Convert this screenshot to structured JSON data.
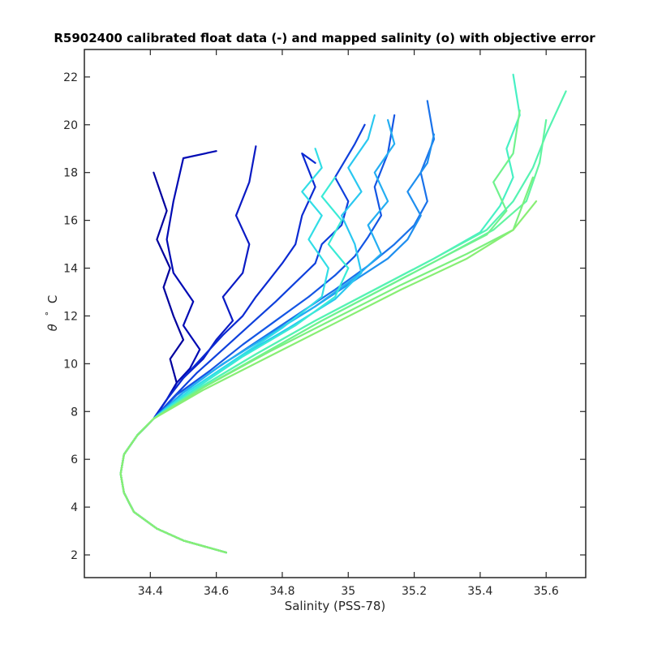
{
  "chart_data": {
    "type": "line",
    "title": "R5902400 calibrated float data (-) and mapped salinity (o) with objective error",
    "xlabel": "Salinity (PSS-78)",
    "ylabel_symbol": "θ",
    "ylabel_degree": "°",
    "ylabel_unit": "C",
    "xlim": [
      34.2,
      35.72
    ],
    "ylim": [
      1.05,
      23.15
    ],
    "xticks": [
      34.4,
      34.6,
      34.8,
      35,
      35.2,
      35.4,
      35.6
    ],
    "xtick_labels": [
      "34.4",
      "34.6",
      "34.8",
      "35",
      "35.2",
      "35.4",
      "35.6"
    ],
    "yticks": [
      2,
      4,
      6,
      8,
      10,
      12,
      14,
      16,
      18,
      20,
      22
    ],
    "ytick_labels": [
      "2",
      "4",
      "6",
      "8",
      "10",
      "12",
      "14",
      "16",
      "18",
      "20",
      "22"
    ],
    "grid": false,
    "colormap": [
      "#0000aa",
      "#0a2bd6",
      "#1a6ae8",
      "#21b8f0",
      "#33e8e0",
      "#5cf5b2",
      "#80f07c"
    ],
    "series": [
      {
        "color": "#00009e",
        "x": [
          34.63,
          34.5,
          34.42,
          34.35,
          34.32,
          34.31,
          34.32,
          34.36,
          34.41,
          34.45,
          34.48,
          34.46,
          34.5,
          34.47,
          34.44,
          34.46,
          34.42,
          34.45,
          34.41
        ],
        "y": [
          2.1,
          2.6,
          3.1,
          3.8,
          4.6,
          5.4,
          6.2,
          7.0,
          7.7,
          8.5,
          9.2,
          10.2,
          11.0,
          12.0,
          13.2,
          14.0,
          15.2,
          16.4,
          18.0
        ]
      },
      {
        "color": "#000ab4",
        "x": [
          34.63,
          34.5,
          34.42,
          34.35,
          34.32,
          34.31,
          34.32,
          34.36,
          34.41,
          34.45,
          34.48,
          34.52,
          34.55,
          34.5,
          34.53,
          34.47,
          34.45,
          34.47,
          34.5,
          34.6
        ],
        "y": [
          2.1,
          2.6,
          3.1,
          3.8,
          4.6,
          5.4,
          6.2,
          7.0,
          7.7,
          8.5,
          9.2,
          9.8,
          10.6,
          11.6,
          12.6,
          13.8,
          15.2,
          16.8,
          18.6,
          18.9
        ]
      },
      {
        "color": "#0a1ac4",
        "x": [
          34.63,
          34.5,
          34.42,
          34.35,
          34.32,
          34.31,
          34.32,
          34.36,
          34.41,
          34.45,
          34.5,
          34.56,
          34.6,
          34.65,
          34.62,
          34.68,
          34.7,
          34.66,
          34.7,
          34.72
        ],
        "y": [
          2.1,
          2.6,
          3.1,
          3.8,
          4.6,
          5.4,
          6.2,
          7.0,
          7.7,
          8.5,
          9.4,
          10.2,
          11.0,
          11.8,
          12.8,
          13.8,
          15.0,
          16.2,
          17.6,
          19.1
        ]
      },
      {
        "color": "#0b2ad2",
        "x": [
          34.63,
          34.5,
          34.42,
          34.35,
          34.32,
          34.31,
          34.32,
          34.36,
          34.41,
          34.45,
          34.5,
          34.56,
          34.62,
          34.68,
          34.72,
          34.76,
          34.8,
          34.84,
          34.86,
          34.9,
          34.86,
          34.9
        ],
        "y": [
          2.1,
          2.6,
          3.1,
          3.8,
          4.6,
          5.4,
          6.2,
          7.0,
          7.7,
          8.5,
          9.4,
          10.3,
          11.2,
          12.0,
          12.8,
          13.5,
          14.2,
          15.0,
          16.2,
          17.4,
          18.8,
          18.4
        ]
      },
      {
        "color": "#0f40dc",
        "x": [
          34.63,
          34.5,
          34.42,
          34.35,
          34.32,
          34.31,
          34.32,
          34.36,
          34.41,
          34.47,
          34.54,
          34.62,
          34.7,
          34.78,
          34.84,
          34.9,
          34.92,
          34.98,
          35.0,
          34.96,
          35.02,
          35.05
        ],
        "y": [
          2.1,
          2.6,
          3.1,
          3.8,
          4.6,
          5.4,
          6.2,
          7.0,
          7.7,
          8.6,
          9.6,
          10.6,
          11.6,
          12.6,
          13.4,
          14.2,
          15.0,
          15.8,
          16.8,
          17.8,
          19.2,
          20.0
        ]
      },
      {
        "color": "#1456e4",
        "x": [
          34.63,
          34.5,
          34.42,
          34.35,
          34.32,
          34.31,
          34.32,
          34.36,
          34.41,
          34.48,
          34.58,
          34.68,
          34.78,
          34.88,
          34.96,
          35.02,
          35.06,
          35.1,
          35.08,
          35.12,
          35.14
        ],
        "y": [
          2.1,
          2.6,
          3.1,
          3.8,
          4.6,
          5.4,
          6.2,
          7.0,
          7.7,
          8.7,
          9.7,
          10.8,
          11.8,
          12.8,
          13.7,
          14.5,
          15.3,
          16.2,
          17.4,
          18.8,
          20.4
        ]
      },
      {
        "color": "#1a72ea",
        "x": [
          34.63,
          34.5,
          34.42,
          34.35,
          34.32,
          34.31,
          34.32,
          34.36,
          34.41,
          34.5,
          34.6,
          34.72,
          34.84,
          34.96,
          35.06,
          35.14,
          35.2,
          35.24,
          35.22,
          35.26,
          35.24
        ],
        "y": [
          2.1,
          2.6,
          3.1,
          3.8,
          4.6,
          5.4,
          6.2,
          7.0,
          7.7,
          8.8,
          9.8,
          10.9,
          12.0,
          13.1,
          14.1,
          15.0,
          15.8,
          16.8,
          18.0,
          19.4,
          21.0
        ]
      },
      {
        "color": "#1f8fef",
        "x": [
          34.63,
          34.5,
          34.42,
          34.35,
          34.32,
          34.31,
          34.32,
          34.36,
          34.41,
          34.5,
          34.62,
          34.76,
          34.9,
          35.02,
          35.12,
          35.18,
          35.22,
          35.18,
          35.24,
          35.26
        ],
        "y": [
          2.1,
          2.6,
          3.1,
          3.8,
          4.6,
          5.4,
          6.2,
          7.0,
          7.7,
          8.8,
          10.0,
          11.2,
          12.4,
          13.5,
          14.4,
          15.2,
          16.2,
          17.2,
          18.4,
          19.6
        ]
      },
      {
        "color": "#24aef2",
        "x": [
          34.63,
          34.5,
          34.42,
          34.35,
          34.32,
          34.31,
          34.32,
          34.36,
          34.41,
          34.5,
          34.62,
          34.76,
          34.9,
          35.02,
          35.1,
          35.06,
          35.12,
          35.08,
          35.14,
          35.12
        ],
        "y": [
          2.1,
          2.6,
          3.1,
          3.8,
          4.6,
          5.4,
          6.2,
          7.0,
          7.7,
          8.8,
          10.0,
          11.2,
          12.4,
          13.6,
          14.6,
          15.8,
          16.8,
          18.0,
          19.2,
          20.2
        ]
      },
      {
        "color": "#2ac8f0",
        "x": [
          34.63,
          34.5,
          34.42,
          34.35,
          34.32,
          34.31,
          34.32,
          34.36,
          34.41,
          34.52,
          34.66,
          34.82,
          34.96,
          35.04,
          35.02,
          34.98,
          35.04,
          35.0,
          35.06,
          35.08
        ],
        "y": [
          2.1,
          2.6,
          3.1,
          3.8,
          4.6,
          5.4,
          6.2,
          7.0,
          7.7,
          8.9,
          10.2,
          11.5,
          12.7,
          13.8,
          15.0,
          16.2,
          17.2,
          18.2,
          19.4,
          20.4
        ]
      },
      {
        "color": "#31dde6",
        "x": [
          34.63,
          34.5,
          34.42,
          34.35,
          34.32,
          34.31,
          34.32,
          34.36,
          34.41,
          34.52,
          34.66,
          34.8,
          34.92,
          34.94,
          34.88,
          34.92,
          34.86,
          34.92,
          34.9
        ],
        "y": [
          2.1,
          2.6,
          3.1,
          3.8,
          4.6,
          5.4,
          6.2,
          7.0,
          7.7,
          8.9,
          10.2,
          11.5,
          12.8,
          14.0,
          15.2,
          16.2,
          17.2,
          18.2,
          19.0
        ]
      },
      {
        "color": "#3aebd6",
        "x": [
          34.63,
          34.5,
          34.42,
          34.35,
          34.32,
          34.31,
          34.32,
          34.36,
          34.41,
          34.53,
          34.68,
          34.84,
          34.96,
          35.0,
          34.94,
          34.98,
          34.92,
          34.96
        ],
        "y": [
          2.1,
          2.6,
          3.1,
          3.8,
          4.6,
          5.4,
          6.2,
          7.0,
          7.7,
          8.9,
          10.3,
          11.6,
          12.8,
          14.0,
          15.0,
          16.0,
          17.0,
          17.8
        ]
      },
      {
        "color": "#47f0c4",
        "x": [
          34.63,
          34.5,
          34.42,
          34.35,
          34.32,
          34.31,
          34.32,
          34.36,
          34.41,
          34.55,
          34.72,
          34.9,
          35.08,
          35.26,
          35.4,
          35.46,
          35.5,
          35.48,
          35.52,
          35.5
        ],
        "y": [
          2.1,
          2.6,
          3.1,
          3.8,
          4.6,
          5.4,
          6.2,
          7.0,
          7.7,
          9.0,
          10.4,
          11.8,
          13.1,
          14.4,
          15.5,
          16.6,
          17.8,
          19.0,
          20.4,
          22.1
        ]
      },
      {
        "color": "#55f3b2",
        "x": [
          34.63,
          34.5,
          34.42,
          34.35,
          34.32,
          34.31,
          34.32,
          34.36,
          34.41,
          34.55,
          34.72,
          34.9,
          35.08,
          35.26,
          35.42,
          35.5,
          35.56,
          35.6,
          35.66
        ],
        "y": [
          2.1,
          2.6,
          3.1,
          3.8,
          4.6,
          5.4,
          6.2,
          7.0,
          7.7,
          9.0,
          10.4,
          11.8,
          13.1,
          14.4,
          15.6,
          16.8,
          18.2,
          19.6,
          21.4
        ]
      },
      {
        "color": "#62f5a0",
        "x": [
          34.63,
          34.5,
          34.42,
          34.35,
          34.32,
          34.31,
          34.32,
          34.36,
          34.41,
          34.56,
          34.74,
          34.92,
          35.1,
          35.28,
          35.44,
          35.54,
          35.58,
          35.6
        ],
        "y": [
          2.1,
          2.6,
          3.1,
          3.8,
          4.6,
          5.4,
          6.2,
          7.0,
          7.7,
          9.0,
          10.4,
          11.8,
          13.1,
          14.4,
          15.6,
          16.8,
          18.4,
          20.2
        ]
      },
      {
        "color": "#70f28e",
        "x": [
          34.63,
          34.5,
          34.42,
          34.35,
          34.32,
          34.31,
          34.32,
          34.36,
          34.41,
          34.56,
          34.74,
          34.92,
          35.1,
          35.28,
          35.42,
          35.48,
          35.44,
          35.5,
          35.52
        ],
        "y": [
          2.1,
          2.6,
          3.1,
          3.8,
          4.6,
          5.4,
          6.2,
          7.0,
          7.7,
          9.0,
          10.4,
          11.8,
          13.1,
          14.4,
          15.4,
          16.4,
          17.6,
          18.8,
          20.6
        ]
      },
      {
        "color": "#7cf07e",
        "x": [
          34.63,
          34.5,
          34.42,
          34.35,
          34.32,
          34.31,
          34.32,
          34.36,
          34.41,
          34.56,
          34.76,
          34.96,
          35.16,
          35.36,
          35.5,
          35.56
        ],
        "y": [
          2.1,
          2.6,
          3.1,
          3.8,
          4.6,
          5.4,
          6.2,
          7.0,
          7.7,
          9.0,
          10.5,
          11.9,
          13.3,
          14.6,
          15.6,
          17.8
        ]
      },
      {
        "color": "#88ee74",
        "x": [
          34.63,
          34.5,
          34.42,
          34.35,
          34.32,
          34.31,
          34.32,
          34.36,
          34.41,
          34.56,
          34.76,
          34.96,
          35.16,
          35.36,
          35.5,
          35.57
        ],
        "y": [
          2.1,
          2.6,
          3.1,
          3.8,
          4.6,
          5.4,
          6.2,
          7.0,
          7.7,
          8.9,
          10.3,
          11.7,
          13.1,
          14.4,
          15.6,
          16.8
        ]
      }
    ]
  }
}
